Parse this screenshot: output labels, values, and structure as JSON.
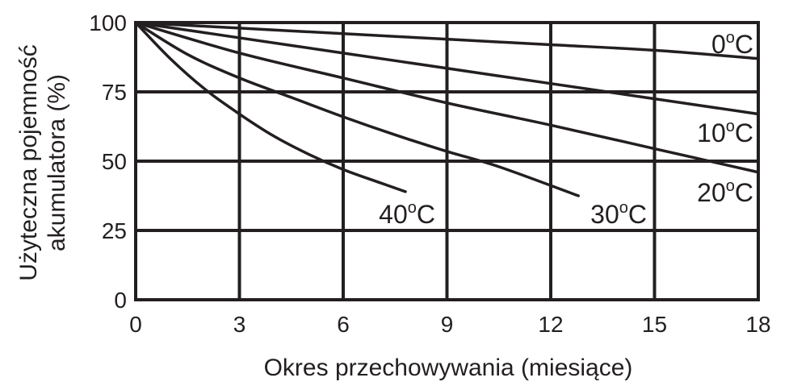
{
  "chart_data": {
    "type": "line",
    "xlabel": "Okres przechowywania (miesiące)",
    "ylabel_line1": "Użyteczna pojemność",
    "ylabel_line2": "akumulatora (%)",
    "xlim": [
      0,
      18
    ],
    "ylim": [
      0,
      100
    ],
    "xticks": [
      0,
      3,
      6,
      9,
      12,
      15,
      18
    ],
    "yticks": [
      0,
      25,
      50,
      75,
      100
    ],
    "grid": true,
    "series": [
      {
        "name": "0",
        "unit": "C",
        "x": [
          0,
          3,
          6,
          9,
          12,
          15,
          18
        ],
        "y": [
          100,
          98,
          96,
          94,
          92,
          90,
          87
        ]
      },
      {
        "name": "10",
        "unit": "C",
        "x": [
          0,
          3,
          6,
          9,
          12,
          15,
          18
        ],
        "y": [
          100,
          94.5,
          89,
          83.5,
          78,
          72.5,
          67
        ]
      },
      {
        "name": "20",
        "unit": "C",
        "x": [
          0,
          3,
          6,
          9,
          12,
          15,
          18
        ],
        "y": [
          100,
          89,
          80,
          71,
          63,
          54.5,
          46
        ]
      },
      {
        "name": "30",
        "unit": "C",
        "x": [
          0,
          1.5,
          3,
          4.5,
          6,
          7.5,
          9,
          10.5,
          12.8
        ],
        "y": [
          100,
          88.5,
          80,
          73,
          66,
          59.5,
          53.5,
          48,
          37.5
        ]
      },
      {
        "name": "40",
        "unit": "C",
        "x": [
          0,
          1,
          2,
          3,
          4,
          5,
          6,
          7,
          7.8
        ],
        "y": [
          100,
          87,
          76,
          67,
          59,
          52.5,
          47,
          42.5,
          39
        ]
      }
    ],
    "colors": {
      "line": "#231f20",
      "background": "#ffffff"
    }
  }
}
